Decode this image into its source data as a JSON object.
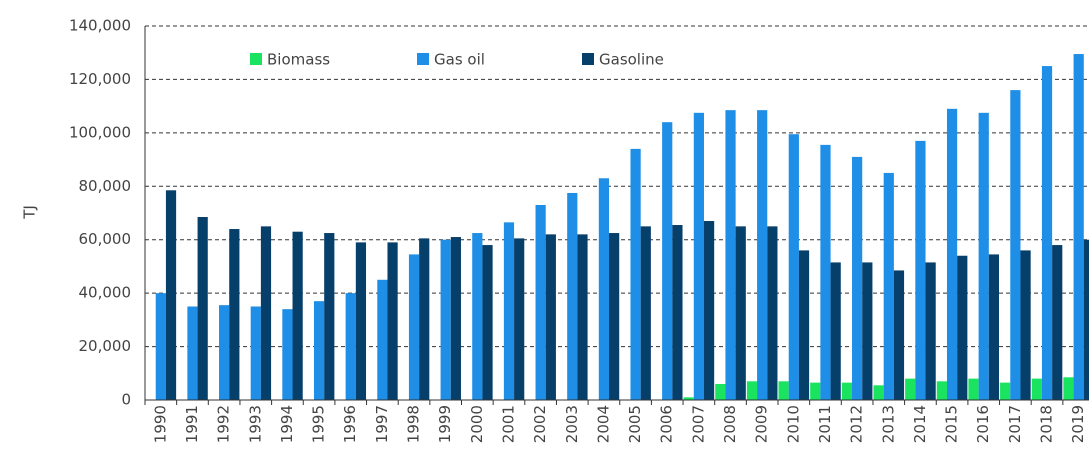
{
  "chart_data": {
    "type": "bar",
    "y_label": "TJ",
    "categories": [
      "1990",
      "1991",
      "1992",
      "1993",
      "1994",
      "1995",
      "1996",
      "1997",
      "1998",
      "1999",
      "2000",
      "2001",
      "2002",
      "2003",
      "2004",
      "2005",
      "2006",
      "2007",
      "2008",
      "2009",
      "2010",
      "2011",
      "2012",
      "2013",
      "2014",
      "2015",
      "2016",
      "2017",
      "2018",
      "2019"
    ],
    "series": [
      {
        "name": "Biomass",
        "color": "#19e35f",
        "values": [
          0,
          0,
          0,
          0,
          0,
          0,
          0,
          0,
          0,
          0,
          0,
          0,
          0,
          0,
          0,
          0,
          0,
          1000,
          6000,
          7000,
          7000,
          6500,
          6500,
          5500,
          8000,
          7000,
          8000,
          6500,
          8000,
          8500
        ]
      },
      {
        "name": "Gas oil",
        "color": "#1e8ee6",
        "values": [
          40000,
          35000,
          35500,
          35000,
          34000,
          37000,
          40000,
          45000,
          54500,
          60000,
          62500,
          66500,
          73000,
          77500,
          83000,
          94000,
          104000,
          107500,
          108500,
          108500,
          99500,
          95500,
          91000,
          85000,
          97000,
          109000,
          107500,
          116000,
          125000,
          129500
        ]
      },
      {
        "name": "Gasoline",
        "color": "#073f6b",
        "values": [
          78500,
          68500,
          64000,
          65000,
          63000,
          62500,
          59000,
          59000,
          60500,
          61000,
          58000,
          60500,
          62000,
          62000,
          62500,
          65000,
          65500,
          67000,
          65000,
          65000,
          56000,
          51500,
          51500,
          48500,
          51500,
          54000,
          54500,
          56000,
          58000,
          60000
        ]
      }
    ],
    "ylim": [
      0,
      140000
    ],
    "yticks": [
      0,
      {
        "value": 20000,
        "label": "20,000"
      },
      {
        "value": 40000,
        "label": "40,000"
      },
      {
        "value": 60000,
        "label": "60,000"
      },
      {
        "value": 80000,
        "label": "80,000"
      },
      {
        "value": 100000,
        "label": "100,000"
      },
      {
        "value": 120000,
        "label": "120,000"
      },
      {
        "value": 140000,
        "label": "140,000"
      }
    ],
    "grid": true,
    "legend": "top"
  }
}
